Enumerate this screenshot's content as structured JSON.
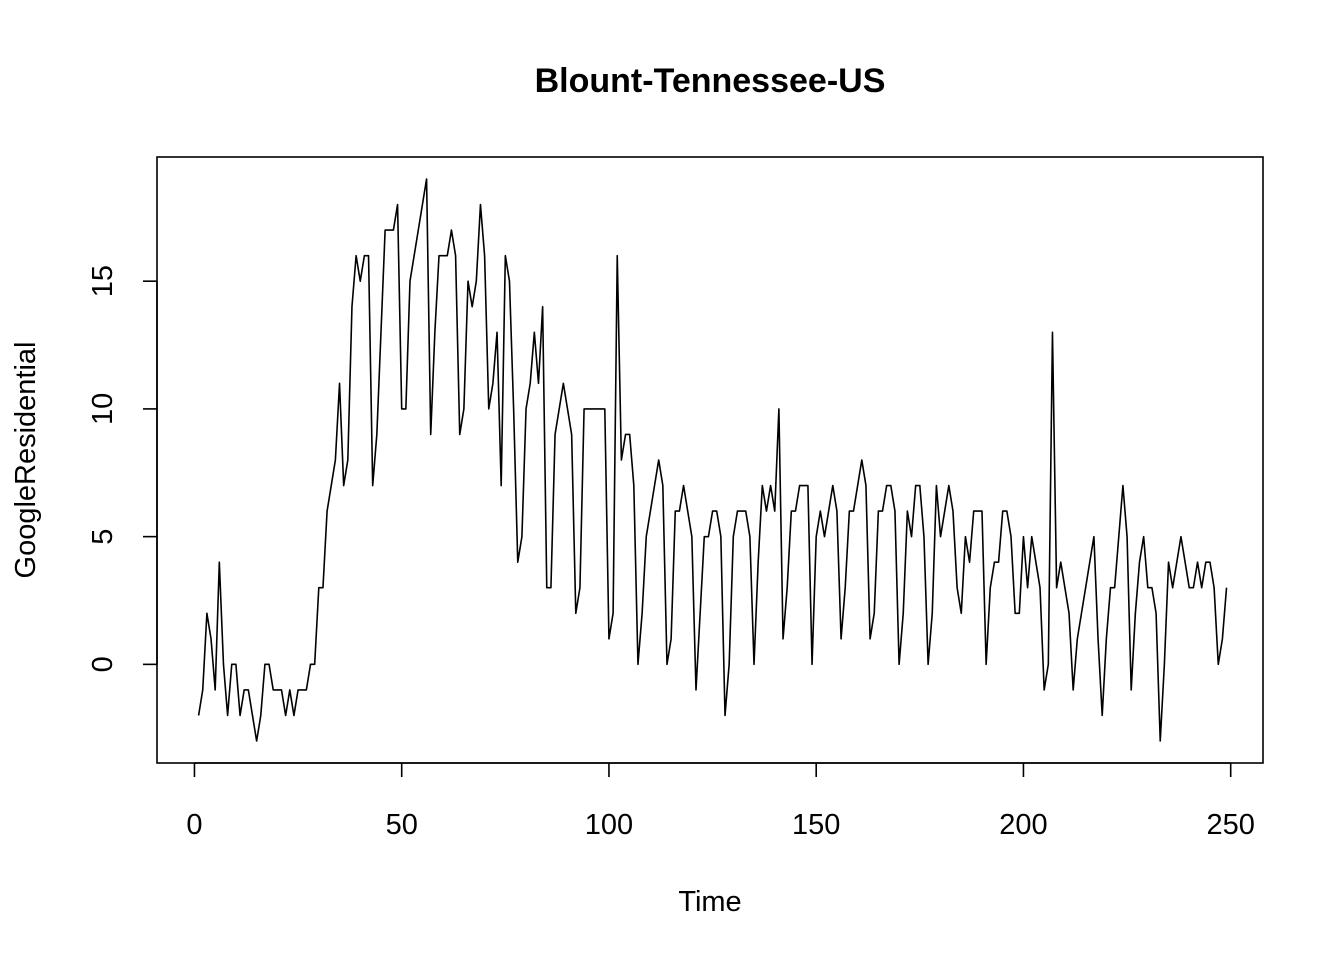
{
  "chart_data": {
    "type": "line",
    "title": "Blount-Tennessee-US",
    "xlabel": "Time",
    "ylabel": "GoogleResidential",
    "xlim": [
      1,
      248
    ],
    "ylim": [
      -3,
      19
    ],
    "x_ticks": [
      0,
      50,
      100,
      150,
      200,
      250
    ],
    "y_ticks": [
      0,
      5,
      10,
      15
    ],
    "grid": false,
    "series": [
      {
        "values": [
          -2,
          -1,
          2,
          1,
          -1,
          4,
          0,
          -2,
          0,
          0,
          -2,
          -1,
          -1,
          -2,
          -3,
          -2,
          0,
          0,
          -1,
          -1,
          -1,
          -2,
          -1,
          -2,
          -1,
          -1,
          -1,
          0,
          0,
          3,
          3,
          6,
          7,
          8,
          11,
          7,
          8,
          14,
          16,
          15,
          16,
          16,
          7,
          9,
          13,
          17,
          17,
          17,
          18,
          10,
          10,
          15,
          16,
          17,
          18,
          19,
          9,
          13,
          16,
          16,
          16,
          17,
          16,
          9,
          10,
          15,
          14,
          15,
          18,
          16,
          10,
          11,
          13,
          7,
          16,
          15,
          10,
          4,
          5,
          10,
          11,
          13,
          11,
          14,
          3,
          3,
          9,
          10,
          11,
          10,
          9,
          2,
          3,
          10,
          10,
          10,
          10,
          10,
          10,
          1,
          2,
          16,
          8,
          9,
          9,
          7,
          0,
          2,
          5,
          6,
          7,
          8,
          7,
          0,
          1,
          6,
          6,
          7,
          6,
          5,
          -1,
          2,
          5,
          5,
          6,
          6,
          5,
          -2,
          0,
          5,
          6,
          6,
          6,
          5,
          0,
          4,
          7,
          6,
          7,
          6,
          10,
          1,
          3,
          6,
          6,
          7,
          7,
          7,
          0,
          5,
          6,
          5,
          6,
          7,
          6,
          1,
          3,
          6,
          6,
          7,
          8,
          7,
          1,
          2,
          6,
          6,
          7,
          7,
          6,
          0,
          2,
          6,
          5,
          7,
          7,
          5,
          0,
          2,
          7,
          5,
          6,
          7,
          6,
          3,
          2,
          5,
          4,
          6,
          6,
          6,
          0,
          3,
          4,
          4,
          6,
          6,
          5,
          2,
          2,
          5,
          3,
          5,
          4,
          3,
          -1,
          0,
          13,
          3,
          4,
          3,
          2,
          -1,
          1,
          2,
          3,
          4,
          5,
          1,
          -2,
          1,
          3,
          3,
          5,
          7,
          5,
          -1,
          2,
          4,
          5,
          3,
          3,
          2,
          -3,
          0,
          4,
          3,
          4,
          5,
          4,
          3,
          3,
          4,
          3,
          4,
          4,
          3,
          0,
          1,
          3
        ]
      }
    ]
  }
}
